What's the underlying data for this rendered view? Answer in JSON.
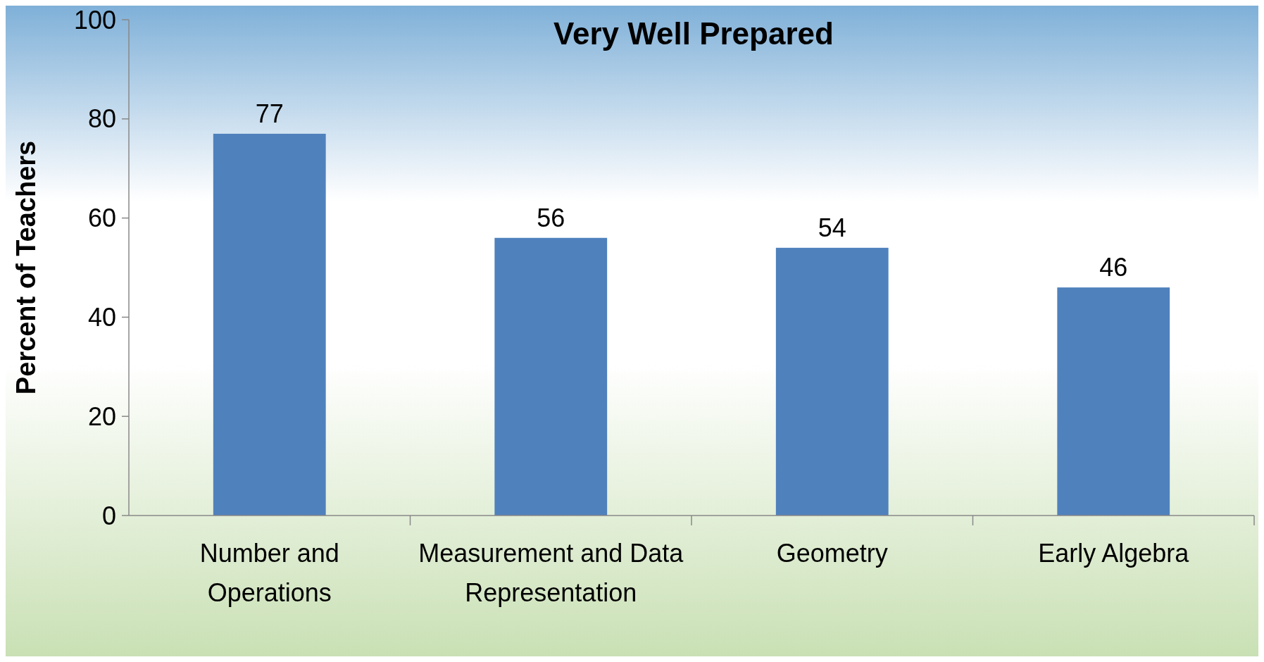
{
  "chart_data": {
    "type": "bar",
    "title": "Very Well Prepared",
    "ylabel": "Percent of Teachers",
    "categories": [
      "Number and Operations",
      "Measurement and Data Representation",
      "Geometry",
      "Early Algebra"
    ],
    "values": [
      77,
      56,
      54,
      46
    ],
    "color": "#4f81bd",
    "ylim": [
      0,
      100
    ],
    "yticks": [
      0,
      20,
      40,
      60,
      80,
      100
    ],
    "grid": false,
    "data_labels": true
  }
}
